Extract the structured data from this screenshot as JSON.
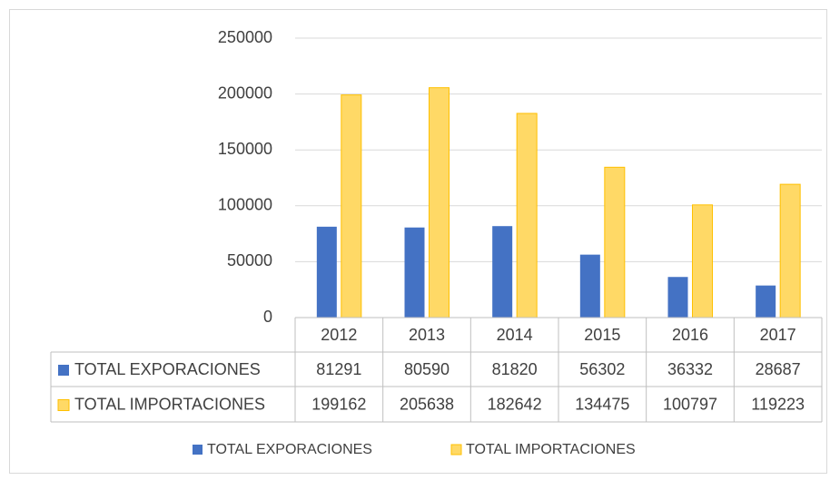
{
  "chart_data": {
    "type": "bar",
    "categories": [
      "2012",
      "2013",
      "2014",
      "2015",
      "2016",
      "2017"
    ],
    "series": [
      {
        "name": "TOTAL EXPORACIONES",
        "color": "#4472c4",
        "values": [
          81291,
          80590,
          81820,
          56302,
          36332,
          28687
        ]
      },
      {
        "name": "TOTAL IMPORTACIONES",
        "color": "#ffd966",
        "values": [
          199162,
          205638,
          182642,
          134475,
          100797,
          119223
        ]
      }
    ],
    "ylim": [
      0,
      250000
    ],
    "yticks": [
      0,
      50000,
      100000,
      150000,
      200000,
      250000
    ],
    "grid": true,
    "legend": "bottom",
    "data_table": true
  }
}
